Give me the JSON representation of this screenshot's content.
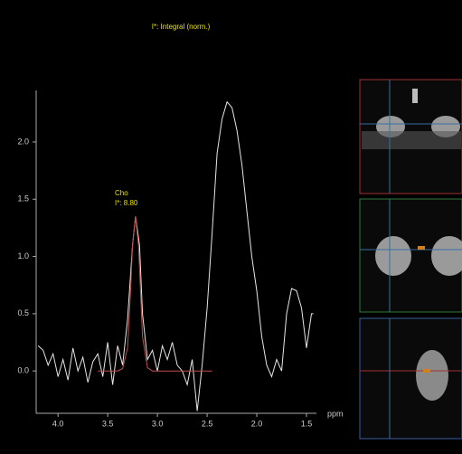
{
  "chart_data": {
    "type": "line",
    "title": "I*: Integral (norm.)",
    "xlabel": "ppm",
    "annotations": [
      "Cho",
      "I*: 8.80"
    ],
    "xlim": [
      4.22,
      1.4
    ],
    "ylim": [
      -0.37,
      2.45
    ],
    "xticks": [
      {
        "value": 4.0,
        "label": "4.0"
      },
      3.5,
      {
        "value": 3.0,
        "label": "3.0"
      },
      2.5,
      {
        "value": 2.0,
        "label": "2.0"
      },
      1.5
    ],
    "yticks": [
      {
        "value": 0,
        "label": "0.0"
      },
      0.5,
      {
        "value": 1,
        "label": "1.0"
      },
      1.5,
      {
        "value": 2,
        "label": "2.0"
      }
    ],
    "series": [
      {
        "color": "#e6e6e6",
        "x": [
          4.2,
          4.15,
          4.1,
          4.05,
          4.0,
          3.95,
          3.9,
          3.85,
          3.8,
          3.75,
          3.7,
          3.65,
          3.6,
          3.55,
          3.5,
          3.45,
          3.4,
          3.35,
          3.3,
          3.25,
          3.22,
          3.18,
          3.15,
          3.1,
          3.05,
          3.0,
          2.95,
          2.9,
          2.85,
          2.8,
          2.75,
          2.7,
          2.65,
          2.6,
          2.55,
          2.5,
          2.45,
          2.4,
          2.35,
          2.3,
          2.25,
          2.2,
          2.15,
          2.1,
          2.05,
          2.0,
          1.95,
          1.9,
          1.85,
          1.8,
          1.75,
          1.7,
          1.65,
          1.6,
          1.55,
          1.5,
          1.45,
          1.43
        ],
        "values": [
          0.22,
          0.18,
          0.05,
          0.15,
          -0.05,
          0.1,
          -0.08,
          0.2,
          0.0,
          0.12,
          -0.1,
          0.08,
          0.15,
          -0.05,
          0.25,
          -0.12,
          0.22,
          0.05,
          0.45,
          1.1,
          1.35,
          1.1,
          0.5,
          0.1,
          0.18,
          0.0,
          0.22,
          0.1,
          0.25,
          0.05,
          0.0,
          -0.12,
          0.1,
          -0.35,
          0.05,
          0.55,
          1.2,
          1.9,
          2.2,
          2.35,
          2.3,
          2.1,
          1.8,
          1.4,
          1.0,
          0.7,
          0.3,
          0.05,
          -0.05,
          0.1,
          0.0,
          0.5,
          0.72,
          0.7,
          0.55,
          0.2,
          0.5,
          0.5
        ]
      },
      {
        "color": "#c0504d",
        "x": [
          3.6,
          3.4,
          3.35,
          3.3,
          3.27,
          3.25,
          3.22,
          3.19,
          3.17,
          3.15,
          3.1,
          3.05,
          2.45
        ],
        "values": [
          0,
          0,
          0.02,
          0.2,
          0.7,
          1.1,
          1.35,
          1.1,
          0.7,
          0.3,
          0.03,
          0,
          0
        ]
      }
    ]
  }
}
